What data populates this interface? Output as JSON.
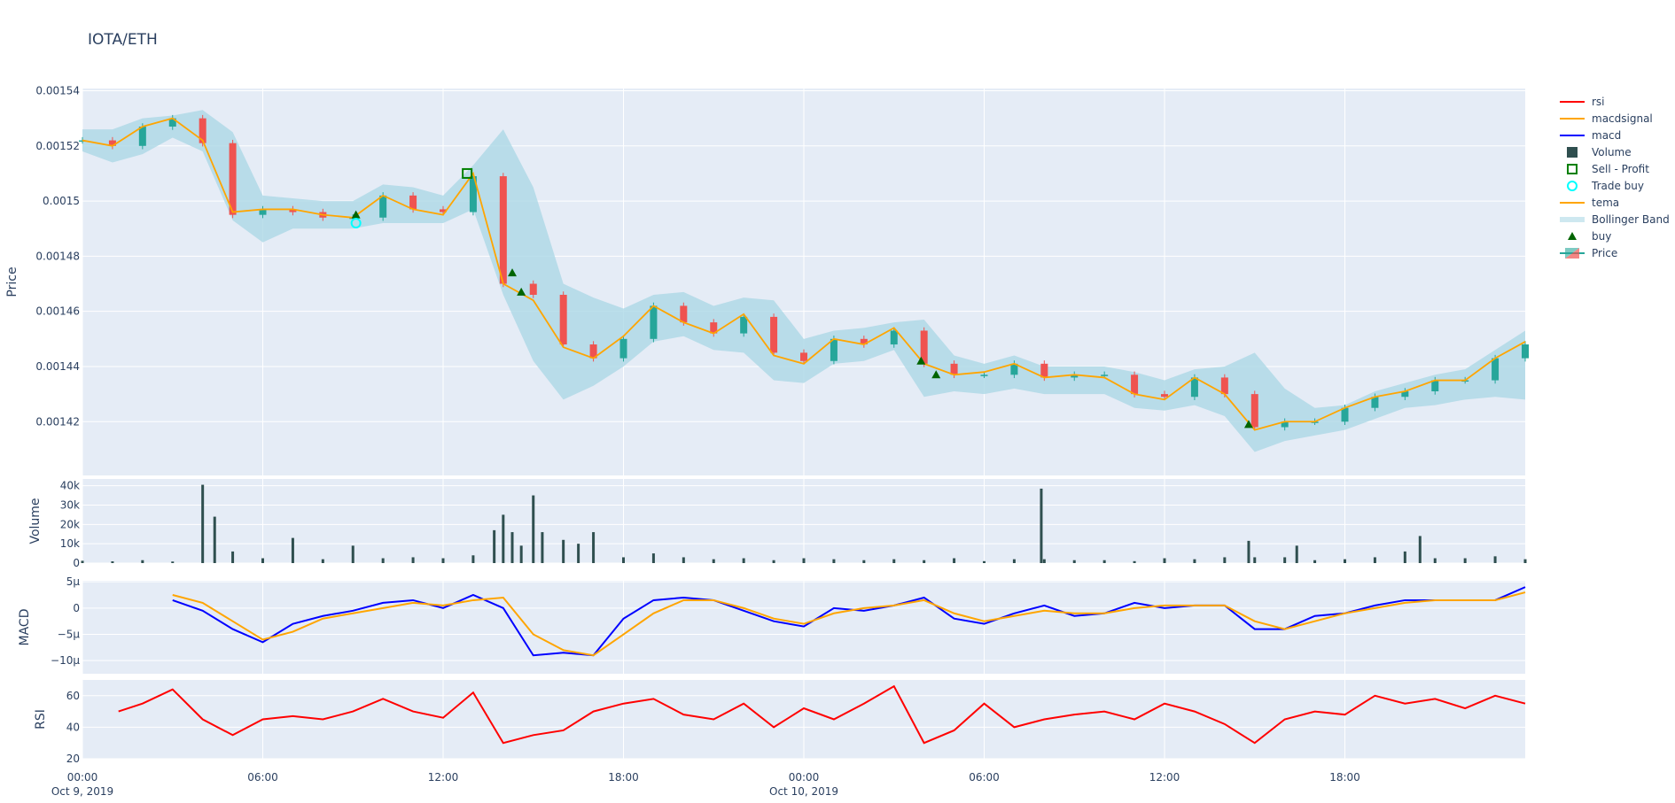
{
  "title": "IOTA/ETH",
  "colors": {
    "bg": "#e5ecf6",
    "grid": "#ffffff",
    "up": "#26a69a",
    "down": "#ef5350",
    "rsi": "#ff0000",
    "macd": "#0000ff",
    "macdsignal": "#ffa500",
    "tema": "#ffa500",
    "bb": "#add8e6",
    "volume": "#2f4f4f",
    "buy": "#006400",
    "sell": "#008000",
    "tradebuy": "#00ffff"
  },
  "legend": [
    "rsi",
    "macdsignal",
    "macd",
    "Volume",
    "Sell - Profit",
    "Trade buy",
    "tema",
    "Bollinger Band",
    "buy",
    "Price"
  ],
  "chart_data": [
    {
      "type": "candlestick",
      "ylabel": "Price",
      "ylim": [
        0.0014005,
        0.0015408
      ],
      "yticks": [
        "0.00154",
        "0.00152",
        "0.0015",
        "0.00148",
        "0.00146",
        "0.00144",
        "0.00142"
      ],
      "ytick_values": [
        0.00154,
        0.00152,
        0.0015,
        0.00148,
        0.00146,
        0.00144,
        0.00142
      ],
      "x_hours": [
        0,
        1,
        2,
        3,
        4,
        5,
        6,
        7,
        8,
        9,
        10,
        11,
        12,
        13,
        14,
        15,
        16,
        17,
        18,
        19,
        20,
        21,
        22,
        23,
        24,
        25,
        26,
        27,
        28,
        29,
        30,
        31,
        32,
        33,
        34,
        35,
        36,
        37,
        38,
        39,
        40,
        41,
        42,
        43,
        44,
        45,
        46,
        47,
        48
      ],
      "close": [
        0.001522,
        0.00152,
        0.001527,
        0.00153,
        0.001521,
        0.001495,
        0.001497,
        0.001496,
        0.001494,
        0.001494,
        0.001502,
        0.001497,
        0.001496,
        0.001509,
        0.00147,
        0.001466,
        0.001448,
        0.001443,
        0.00145,
        0.001462,
        0.001456,
        0.001452,
        0.001458,
        0.001445,
        0.001442,
        0.00145,
        0.001448,
        0.001453,
        0.001441,
        0.001437,
        0.001437,
        0.001441,
        0.001436,
        0.001437,
        0.001437,
        0.00143,
        0.001429,
        0.001436,
        0.00143,
        0.001418,
        0.00142,
        0.00142,
        0.001425,
        0.001429,
        0.001431,
        0.001435,
        0.001435,
        0.001443,
        0.001448
      ],
      "tema": [
        0.001522,
        0.00152,
        0.001527,
        0.00153,
        0.001522,
        0.001496,
        0.001497,
        0.001497,
        0.001495,
        0.001494,
        0.001502,
        0.001497,
        0.001495,
        0.00151,
        0.00147,
        0.001464,
        0.001447,
        0.001443,
        0.001451,
        0.001462,
        0.001456,
        0.001452,
        0.001459,
        0.001444,
        0.001441,
        0.00145,
        0.001448,
        0.001454,
        0.001441,
        0.001437,
        0.001438,
        0.001441,
        0.001436,
        0.001437,
        0.001436,
        0.00143,
        0.001428,
        0.001436,
        0.00143,
        0.001417,
        0.00142,
        0.00142,
        0.001425,
        0.001429,
        0.001431,
        0.001435,
        0.001435,
        0.001443,
        0.001449
      ],
      "bb_upper": [
        0.001526,
        0.001526,
        0.00153,
        0.001531,
        0.001533,
        0.001525,
        0.001502,
        0.001501,
        0.0015,
        0.0015,
        0.001506,
        0.001505,
        0.001502,
        0.001513,
        0.001526,
        0.001505,
        0.00147,
        0.001465,
        0.001461,
        0.001466,
        0.001467,
        0.001462,
        0.001465,
        0.001464,
        0.00145,
        0.001453,
        0.001454,
        0.001456,
        0.001457,
        0.001444,
        0.001441,
        0.001444,
        0.00144,
        0.00144,
        0.00144,
        0.001438,
        0.001435,
        0.001439,
        0.00144,
        0.001445,
        0.001432,
        0.001425,
        0.001426,
        0.001431,
        0.001434,
        0.001437,
        0.001439,
        0.001446,
        0.001453
      ],
      "bb_lower": [
        0.001518,
        0.001514,
        0.001517,
        0.001523,
        0.001518,
        0.001493,
        0.001485,
        0.00149,
        0.00149,
        0.00149,
        0.001492,
        0.001492,
        0.001492,
        0.001497,
        0.001466,
        0.001442,
        0.001428,
        0.001433,
        0.00144,
        0.001449,
        0.001451,
        0.001446,
        0.001445,
        0.001435,
        0.001434,
        0.001441,
        0.001442,
        0.001446,
        0.001429,
        0.001431,
        0.00143,
        0.001432,
        0.00143,
        0.00143,
        0.00143,
        0.001425,
        0.001424,
        0.001426,
        0.001422,
        0.001409,
        0.001413,
        0.001415,
        0.001417,
        0.001421,
        0.001425,
        0.001426,
        0.001428,
        0.001429,
        0.001428
      ],
      "buy_markers": [
        [
          9.1,
          0.001495
        ],
        [
          14.3,
          0.001474
        ],
        [
          14.6,
          0.001467
        ],
        [
          27.9,
          0.001442
        ],
        [
          28.4,
          0.001437
        ],
        [
          38.8,
          0.001419
        ]
      ],
      "trade_buy": [
        [
          9.1,
          0.001492
        ]
      ],
      "sell_profit": [
        [
          12.8,
          0.00151
        ]
      ]
    },
    {
      "type": "bar",
      "ylabel": "Volume",
      "ylim": [
        0,
        43500
      ],
      "yticks": [
        "0",
        "10k",
        "20k",
        "30k",
        "40k"
      ],
      "ytick_values": [
        0,
        10000,
        20000,
        30000,
        40000
      ],
      "x_hours": [
        0,
        1,
        2,
        3,
        4,
        4.4,
        5,
        6,
        7,
        8,
        9,
        10,
        11,
        12,
        13,
        13.7,
        14,
        14.3,
        14.6,
        15,
        15.3,
        16,
        16.5,
        17,
        18,
        19,
        20,
        21,
        22,
        23,
        24,
        25,
        26,
        27,
        28,
        29,
        30,
        31,
        31.9,
        32,
        33,
        34,
        35,
        36,
        37,
        38,
        38.8,
        39,
        40,
        40.4,
        41,
        42,
        43,
        44,
        44.5,
        45,
        46,
        47,
        48
      ],
      "values": [
        1200,
        900,
        1500,
        800,
        40500,
        24000,
        6000,
        2500,
        13000,
        2000,
        9000,
        2500,
        3000,
        2500,
        4000,
        17000,
        25000,
        16000,
        9000,
        35000,
        16000,
        12000,
        10000,
        16000,
        3000,
        5000,
        3000,
        2000,
        2500,
        1500,
        2500,
        2000,
        1500,
        2000,
        1500,
        2500,
        1000,
        2000,
        38500,
        2000,
        1500,
        1500,
        1000,
        2500,
        2000,
        3000,
        11500,
        3000,
        3000,
        9000,
        1500,
        2000,
        3000,
        6000,
        14000,
        2500,
        2500,
        3500,
        2000
      ]
    },
    {
      "type": "line",
      "ylabel": "MACD",
      "ylim": [
        -12.5,
        5.2
      ],
      "unit": "µ",
      "yticks": [
        "5µ",
        "0",
        "−5µ",
        "−10µ"
      ],
      "ytick_values": [
        5,
        0,
        -5,
        -10
      ],
      "x_hours": [
        3,
        4,
        5,
        6,
        7,
        8,
        9,
        10,
        11,
        12,
        13,
        14,
        15,
        16,
        17,
        18,
        19,
        20,
        21,
        22,
        23,
        24,
        25,
        26,
        27,
        28,
        29,
        30,
        31,
        32,
        33,
        34,
        35,
        36,
        37,
        38,
        39,
        40,
        41,
        42,
        43,
        44,
        45,
        46,
        47,
        48
      ],
      "series": [
        {
          "name": "macd",
          "values": [
            1.5,
            -0.5,
            -4,
            -6.5,
            -3,
            -1.5,
            -0.5,
            1,
            1.5,
            0,
            2.5,
            0,
            -9,
            -8.5,
            -9,
            -2,
            1.5,
            2,
            1.5,
            -0.5,
            -2.5,
            -3.5,
            0,
            -0.5,
            0.5,
            2,
            -2,
            -3,
            -1,
            0.5,
            -1.5,
            -1,
            1,
            0,
            0.5,
            0.5,
            -4,
            -4,
            -1.5,
            -1,
            0.5,
            1.5,
            1.5,
            1.5,
            1.5,
            4
          ]
        },
        {
          "name": "macdsignal",
          "values": [
            2.5,
            1,
            -2.5,
            -6,
            -4.5,
            -2,
            -1,
            0,
            1,
            0.5,
            1.5,
            2,
            -5,
            -8,
            -9,
            -5,
            -1,
            1.5,
            1.5,
            0,
            -2,
            -3,
            -1,
            0,
            0.5,
            1.5,
            -1,
            -2.5,
            -1.5,
            -0.5,
            -1,
            -1,
            0,
            0.5,
            0.5,
            0.5,
            -2.5,
            -4,
            -2.5,
            -1,
            0,
            1,
            1.5,
            1.5,
            1.5,
            3
          ]
        }
      ]
    },
    {
      "type": "line",
      "ylabel": "RSI",
      "ylim": [
        20,
        70
      ],
      "yticks": [
        "20",
        "40",
        "60"
      ],
      "ytick_values": [
        20,
        40,
        60
      ],
      "x_hours": [
        1.2,
        2,
        3,
        4,
        5,
        6,
        7,
        8,
        9,
        10,
        11,
        12,
        13,
        14,
        15,
        16,
        17,
        18,
        19,
        20,
        21,
        22,
        23,
        24,
        25,
        26,
        27,
        28,
        29,
        30,
        31,
        32,
        33,
        34,
        35,
        36,
        37,
        38,
        39,
        40,
        41,
        42,
        43,
        44,
        45,
        46,
        47,
        48
      ],
      "series": [
        {
          "name": "rsi",
          "values": [
            50,
            55,
            64,
            45,
            35,
            45,
            47,
            45,
            50,
            58,
            50,
            46,
            62,
            30,
            35,
            38,
            50,
            55,
            58,
            48,
            45,
            55,
            40,
            52,
            45,
            55,
            66,
            30,
            38,
            55,
            40,
            45,
            48,
            50,
            45,
            55,
            50,
            42,
            30,
            45,
            50,
            48,
            60,
            55,
            58,
            52,
            60,
            55
          ]
        }
      ]
    }
  ],
  "xaxis": {
    "ticks": [
      "00:00",
      "06:00",
      "12:00",
      "18:00",
      "00:00",
      "06:00",
      "12:00",
      "18:00"
    ],
    "tick_hours": [
      0,
      6,
      12,
      18,
      24,
      30,
      36,
      42
    ],
    "dates": [
      "Oct 9, 2019",
      "Oct 10, 2019"
    ],
    "range_hours": [
      0,
      48
    ]
  }
}
